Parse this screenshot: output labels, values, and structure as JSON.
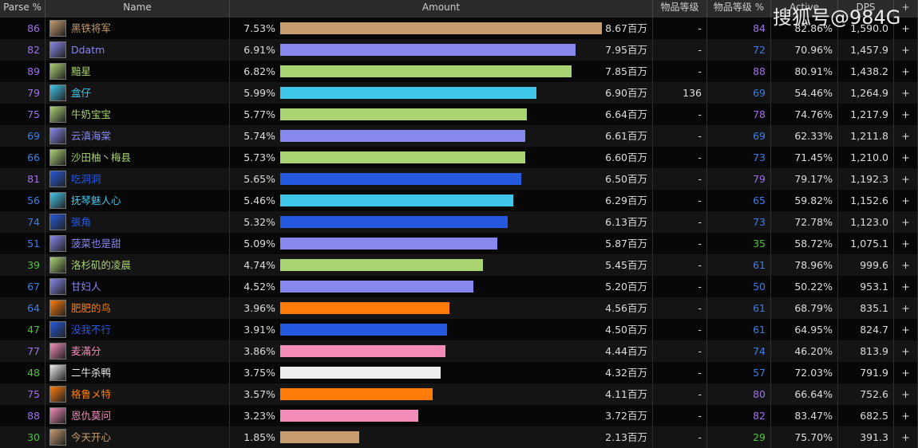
{
  "header": {
    "columns": [
      "Parse %",
      "Name",
      "Amount",
      "物品等级",
      "物品等级 %",
      "Active",
      "DPS",
      "+"
    ],
    "watermark": "搜狐号@984G"
  },
  "table": {
    "rows": [
      {
        "parse": 86,
        "name": "黑铁将军",
        "color": "#c69b6d",
        "pct": "7.53%",
        "amount": "8.67百万",
        "ilvl": "-",
        "ilvl_pct": 84,
        "active": "82.86%",
        "dps": "1,590.0",
        "add": "+"
      },
      {
        "parse": 82,
        "name": "Ddatm",
        "color": "#8788ee",
        "pct": "6.91%",
        "amount": "7.95百万",
        "ilvl": "-",
        "ilvl_pct": 72,
        "active": "70.96%",
        "dps": "1,457.9",
        "add": "+"
      },
      {
        "parse": 89,
        "name": "黯星",
        "color": "#aad372",
        "pct": "6.82%",
        "amount": "7.85百万",
        "ilvl": "-",
        "ilvl_pct": 88,
        "active": "80.91%",
        "dps": "1,438.2",
        "add": "+"
      },
      {
        "parse": 79,
        "name": "盒仔",
        "color": "#3fc7eb",
        "pct": "5.99%",
        "amount": "6.90百万",
        "ilvl": "136",
        "ilvl_pct": 69,
        "active": "54.46%",
        "dps": "1,264.9",
        "add": "+"
      },
      {
        "parse": 75,
        "name": "牛奶宝宝",
        "color": "#aad372",
        "pct": "5.77%",
        "amount": "6.64百万",
        "ilvl": "-",
        "ilvl_pct": 78,
        "active": "74.76%",
        "dps": "1,217.9",
        "add": "+"
      },
      {
        "parse": 69,
        "name": "云滇海棠",
        "color": "#8788ee",
        "pct": "5.74%",
        "amount": "6.61百万",
        "ilvl": "-",
        "ilvl_pct": 69,
        "active": "62.33%",
        "dps": "1,211.8",
        "add": "+"
      },
      {
        "parse": 66,
        "name": "沙田柚丶梅县",
        "color": "#aad372",
        "pct": "5.73%",
        "amount": "6.60百万",
        "ilvl": "-",
        "ilvl_pct": 73,
        "active": "71.45%",
        "dps": "1,210.0",
        "add": "+"
      },
      {
        "parse": 81,
        "name": "吃洞洞",
        "color": "#2459e0",
        "pct": "5.65%",
        "amount": "6.50百万",
        "ilvl": "-",
        "ilvl_pct": 79,
        "active": "79.17%",
        "dps": "1,192.3",
        "add": "+"
      },
      {
        "parse": 56,
        "name": "抚琴魅人心",
        "color": "#3fc7eb",
        "pct": "5.46%",
        "amount": "6.29百万",
        "ilvl": "-",
        "ilvl_pct": 65,
        "active": "59.82%",
        "dps": "1,152.6",
        "add": "+"
      },
      {
        "parse": 74,
        "name": "張角",
        "color": "#2459e0",
        "pct": "5.32%",
        "amount": "6.13百万",
        "ilvl": "-",
        "ilvl_pct": 73,
        "active": "72.78%",
        "dps": "1,123.0",
        "add": "+"
      },
      {
        "parse": 51,
        "name": "菠菜也是甜",
        "color": "#8788ee",
        "pct": "5.09%",
        "amount": "5.87百万",
        "ilvl": "-",
        "ilvl_pct": 35,
        "active": "58.72%",
        "dps": "1,075.1",
        "add": "+"
      },
      {
        "parse": 39,
        "name": "洛杉矶的凌晨",
        "color": "#aad372",
        "pct": "4.74%",
        "amount": "5.45百万",
        "ilvl": "-",
        "ilvl_pct": 61,
        "active": "78.96%",
        "dps": "999.6",
        "add": "+"
      },
      {
        "parse": 67,
        "name": "甘妇人",
        "color": "#8788ee",
        "pct": "4.52%",
        "amount": "5.20百万",
        "ilvl": "-",
        "ilvl_pct": 50,
        "active": "50.22%",
        "dps": "953.1",
        "add": "+"
      },
      {
        "parse": 64,
        "name": "肥肥的鸟",
        "color": "#ff7c0a",
        "pct": "3.96%",
        "amount": "4.56百万",
        "ilvl": "-",
        "ilvl_pct": 61,
        "active": "68.79%",
        "dps": "835.1",
        "add": "+"
      },
      {
        "parse": 47,
        "name": "没我不行",
        "color": "#2459e0",
        "pct": "3.91%",
        "amount": "4.50百万",
        "ilvl": "-",
        "ilvl_pct": 61,
        "active": "64.95%",
        "dps": "824.7",
        "add": "+"
      },
      {
        "parse": 77,
        "name": "麦滿分",
        "color": "#f48cba",
        "pct": "3.86%",
        "amount": "4.44百万",
        "ilvl": "-",
        "ilvl_pct": 74,
        "active": "46.20%",
        "dps": "813.9",
        "add": "+"
      },
      {
        "parse": 48,
        "name": "二牛杀鸭",
        "color": "#eeeeee",
        "pct": "3.75%",
        "amount": "4.32百万",
        "ilvl": "-",
        "ilvl_pct": 57,
        "active": "72.03%",
        "dps": "791.9",
        "add": "+"
      },
      {
        "parse": 75,
        "name": "格鲁メ特",
        "color": "#ff7c0a",
        "pct": "3.57%",
        "amount": "4.11百万",
        "ilvl": "-",
        "ilvl_pct": 80,
        "active": "66.64%",
        "dps": "752.6",
        "add": "+"
      },
      {
        "parse": 88,
        "name": "恩仇莫问",
        "color": "#f48cba",
        "pct": "3.23%",
        "amount": "3.72百万",
        "ilvl": "-",
        "ilvl_pct": 82,
        "active": "83.47%",
        "dps": "682.5",
        "add": "+"
      },
      {
        "parse": 30,
        "name": "今天开心",
        "color": "#c69b6d",
        "pct": "1.85%",
        "amount": "2.13百万",
        "ilvl": "-",
        "ilvl_pct": 29,
        "active": "75.70%",
        "dps": "391.3",
        "add": "+"
      }
    ]
  }
}
